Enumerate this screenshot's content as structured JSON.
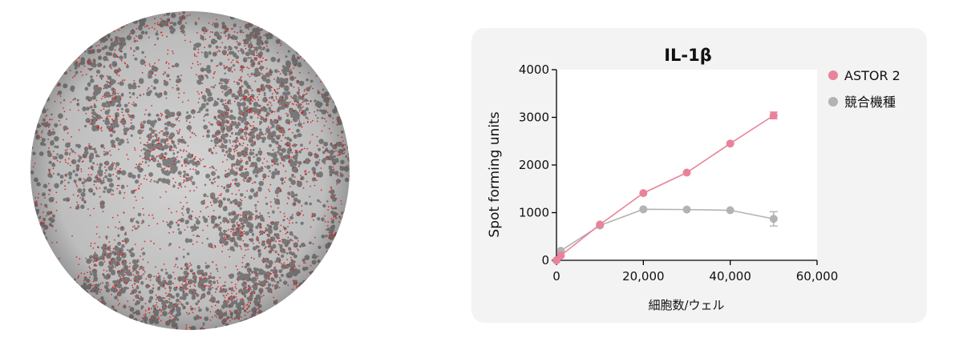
{
  "well_image": {
    "description_icon": "elispot-well-image"
  },
  "chart_data": {
    "type": "line",
    "title": "IL-1β",
    "xlabel": "細胞数/ウェル",
    "ylabel": "Spot forming units",
    "xlim": [
      0,
      60000
    ],
    "ylim": [
      0,
      4000
    ],
    "x_ticks": [
      0,
      20000,
      40000,
      60000
    ],
    "x_tick_labels": [
      "0",
      "20,000",
      "40,000",
      "60,000"
    ],
    "y_ticks": [
      0,
      1000,
      2000,
      3000,
      4000
    ],
    "y_tick_labels": [
      "0",
      "1000",
      "2000",
      "3000",
      "4000"
    ],
    "legend_position": "right",
    "grid": false,
    "series": [
      {
        "name": "ASTOR 2",
        "color": "#e8839a",
        "x": [
          0,
          1000,
          10000,
          20000,
          30000,
          40000,
          50000
        ],
        "values": [
          0,
          100,
          750,
          1410,
          1840,
          2450,
          3040
        ],
        "error": [
          0,
          0,
          0,
          0,
          0,
          0,
          70
        ]
      },
      {
        "name": "競合機種",
        "color": "#b3b3b3",
        "x": [
          0,
          1000,
          10000,
          20000,
          30000,
          40000,
          50000
        ],
        "values": [
          0,
          200,
          730,
          1070,
          1065,
          1050,
          870
        ],
        "error": [
          0,
          0,
          0,
          0,
          0,
          0,
          150
        ]
      }
    ]
  }
}
